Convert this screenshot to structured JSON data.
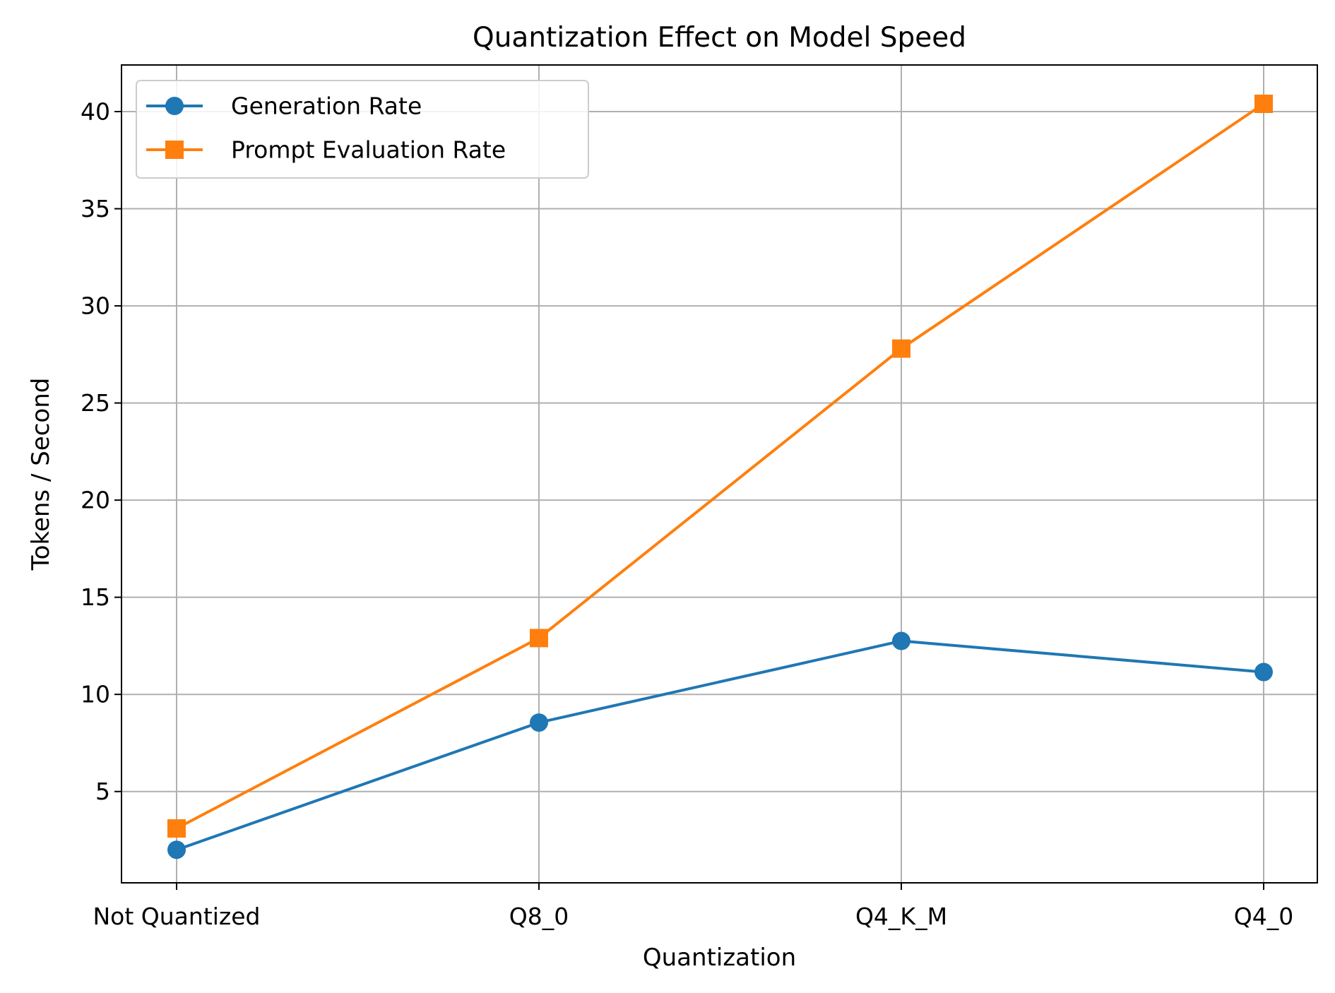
{
  "chart_data": {
    "type": "line",
    "title": "Quantization Effect on Model Speed",
    "xlabel": "Quantization",
    "ylabel": "Tokens / Second",
    "categories": [
      "Not Quantized",
      "Q8_0",
      "Q4_K_M",
      "Q4_0"
    ],
    "ylim": [
      0.3,
      42.4
    ],
    "yticks": [
      5,
      10,
      15,
      20,
      25,
      30,
      35,
      40
    ],
    "grid": true,
    "legend_position": "top-left",
    "series": [
      {
        "name": "Generation Rate",
        "values": [
          2.0,
          8.55,
          12.75,
          11.15
        ],
        "color": "#1f77b4",
        "marker": "circle"
      },
      {
        "name": "Prompt Evaluation Rate",
        "values": [
          3.1,
          12.9,
          27.8,
          40.4
        ],
        "color": "#ff7f0e",
        "marker": "square"
      }
    ]
  }
}
